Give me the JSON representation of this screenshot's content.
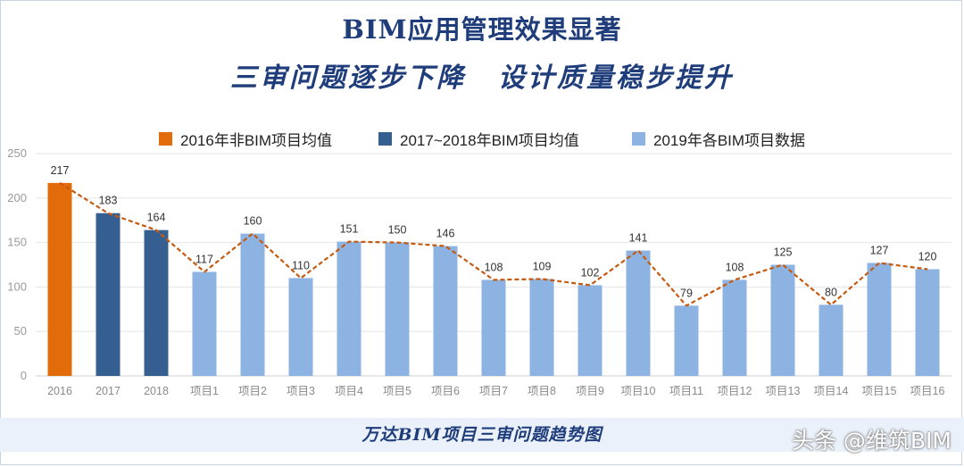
{
  "header": {
    "title_line1": "BIM应用管理效果显著",
    "title_line2_left": "三审问题逐步下降",
    "title_line2_right": "设计质量稳步提升"
  },
  "footer": {
    "caption": "万达BIM项目三审问题趋势图"
  },
  "watermark": "头条 @维筑BIM",
  "colors": {
    "orange": "#e36c0a",
    "dark_blue": "#365f91",
    "light_blue": "#8db3e2",
    "trend": "#c55a11",
    "title": "#1f3d7a"
  },
  "chart_data": {
    "type": "bar",
    "categories": [
      "2016",
      "2017",
      "2018",
      "项目1",
      "项目2",
      "项目3",
      "项目4",
      "项目5",
      "项目6",
      "项目7",
      "项目8",
      "项目9",
      "项目10",
      "项目11",
      "项目12",
      "项目13",
      "项目14",
      "项目15",
      "项目16"
    ],
    "values": [
      217,
      183,
      164,
      117,
      160,
      110,
      151,
      150,
      146,
      108,
      109,
      102,
      141,
      79,
      108,
      125,
      80,
      127,
      120
    ],
    "groups": [
      0,
      1,
      1,
      2,
      2,
      2,
      2,
      2,
      2,
      2,
      2,
      2,
      2,
      2,
      2,
      2,
      2,
      2,
      2
    ],
    "legend": [
      {
        "name": "2016年非BIM项目均值",
        "color": "#e36c0a"
      },
      {
        "name": "2017~2018年BIM项目均值",
        "color": "#365f91"
      },
      {
        "name": "2019年各BIM项目数据",
        "color": "#8db3e2"
      }
    ],
    "legend_position": "top",
    "yticks": [
      0,
      50,
      100,
      150,
      200,
      250
    ],
    "ylim": [
      0,
      250
    ],
    "grid": true,
    "trend_line": {
      "style": "dashed",
      "color": "#c55a11"
    }
  }
}
